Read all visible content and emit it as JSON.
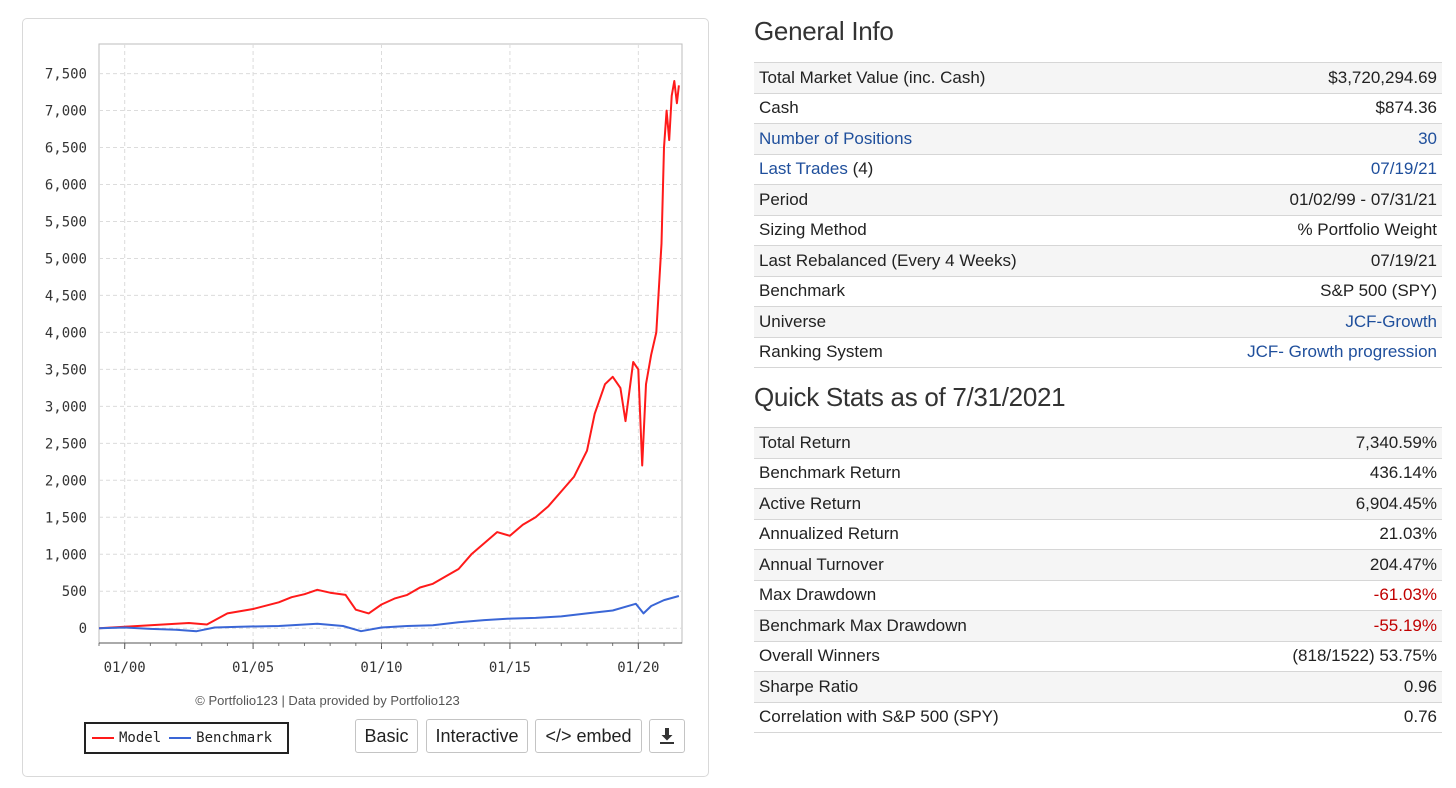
{
  "chart_data": {
    "type": "line",
    "x_ticks": [
      "01/00",
      "01/05",
      "01/10",
      "01/15",
      "01/20"
    ],
    "y_ticks": [
      0,
      500,
      1000,
      1500,
      2000,
      2500,
      3000,
      3500,
      4000,
      4500,
      5000,
      5500,
      6000,
      6500,
      7000,
      7500
    ],
    "y_tick_labels": [
      "0",
      "500",
      "1,000",
      "1,500",
      "2,000",
      "2,500",
      "3,000",
      "3,500",
      "4,000",
      "4,500",
      "5,000",
      "5,500",
      "6,000",
      "6,500",
      "7,000",
      "7,500"
    ],
    "ylim": [
      -200,
      7900
    ],
    "xlim": [
      1999.0,
      2021.7
    ],
    "grid": true,
    "legend_position": "bottom-left",
    "series": [
      {
        "name": "Model",
        "color": "#ff1a1a",
        "x": [
          1999.0,
          2000.0,
          2001.0,
          2002.0,
          2002.5,
          2003.2,
          2004.0,
          2005.0,
          2006.0,
          2006.5,
          2007.0,
          2007.5,
          2008.0,
          2008.6,
          2009.0,
          2009.5,
          2010.0,
          2010.5,
          2011.0,
          2011.5,
          2012.0,
          2012.5,
          2013.0,
          2013.5,
          2014.0,
          2014.5,
          2015.0,
          2015.5,
          2016.0,
          2016.5,
          2017.0,
          2017.5,
          2018.0,
          2018.3,
          2018.7,
          2019.0,
          2019.3,
          2019.5,
          2019.8,
          2020.0,
          2020.15,
          2020.3,
          2020.5,
          2020.7,
          2020.9,
          2021.0,
          2021.1,
          2021.2,
          2021.3,
          2021.4,
          2021.5,
          2021.58
        ],
        "values": [
          0,
          20,
          40,
          60,
          70,
          50,
          200,
          260,
          350,
          420,
          460,
          520,
          480,
          450,
          250,
          200,
          320,
          400,
          450,
          550,
          600,
          700,
          800,
          1000,
          1150,
          1300,
          1250,
          1400,
          1500,
          1650,
          1850,
          2050,
          2400,
          2900,
          3300,
          3400,
          3250,
          2800,
          3600,
          3500,
          2200,
          3300,
          3700,
          4000,
          5200,
          6500,
          7000,
          6600,
          7200,
          7400,
          7100,
          7340
        ]
      },
      {
        "name": "Benchmark",
        "color": "#3a66d6",
        "x": [
          1999.0,
          2000.0,
          2001.0,
          2002.0,
          2002.8,
          2003.5,
          2004.5,
          2006.0,
          2007.5,
          2008.5,
          2009.2,
          2010.0,
          2011.0,
          2012.0,
          2013.0,
          2014.0,
          2015.0,
          2016.0,
          2017.0,
          2018.0,
          2019.0,
          2019.9,
          2020.2,
          2020.5,
          2021.0,
          2021.58
        ],
        "values": [
          0,
          10,
          -10,
          -20,
          -40,
          10,
          20,
          30,
          60,
          30,
          -40,
          10,
          30,
          40,
          80,
          110,
          130,
          140,
          160,
          200,
          240,
          330,
          200,
          300,
          380,
          436
        ]
      }
    ]
  },
  "chart_credit": "© Portfolio123 | Data provided by Portfolio123",
  "buttons": {
    "basic": "Basic",
    "interactive": "Interactive",
    "embed": "</> embed"
  },
  "general_info": {
    "title": "General Info",
    "rows": [
      {
        "label": "Total Market Value (inc. Cash)",
        "value": "$3,720,294.69"
      },
      {
        "label": "Cash",
        "value": "$874.36"
      },
      {
        "label": "Number of Positions",
        "value": "30"
      },
      {
        "label": "Last Trades",
        "label_suffix": "(4)",
        "value": "07/19/21"
      },
      {
        "label": "Period",
        "value": "01/02/99 - 07/31/21"
      },
      {
        "label": "Sizing Method",
        "value": "% Portfolio Weight"
      },
      {
        "label": "Last Rebalanced (Every 4 Weeks)",
        "value": "07/19/21"
      },
      {
        "label": "Benchmark",
        "value": "S&P 500 (SPY)"
      },
      {
        "label": "Universe",
        "value": "JCF-Growth"
      },
      {
        "label": "Ranking System",
        "value": "JCF- Growth progression"
      }
    ]
  },
  "quick_stats": {
    "title": "Quick Stats as of 7/31/2021",
    "rows": [
      {
        "label": "Total Return",
        "value": "7,340.59%"
      },
      {
        "label": "Benchmark Return",
        "value": "436.14%"
      },
      {
        "label": "Active Return",
        "value": "6,904.45%"
      },
      {
        "label": "Annualized Return",
        "value": "21.03%"
      },
      {
        "label": "Annual Turnover",
        "value": "204.47%"
      },
      {
        "label": "Max Drawdown",
        "value": "-61.03%"
      },
      {
        "label": "Benchmark Max Drawdown",
        "value": "-55.19%"
      },
      {
        "label": "Overall Winners",
        "value": "(818/1522) 53.75%"
      },
      {
        "label": "Sharpe Ratio",
        "value": "0.96"
      },
      {
        "label": "Correlation with S&P 500 (SPY)",
        "value": "0.76"
      }
    ]
  }
}
